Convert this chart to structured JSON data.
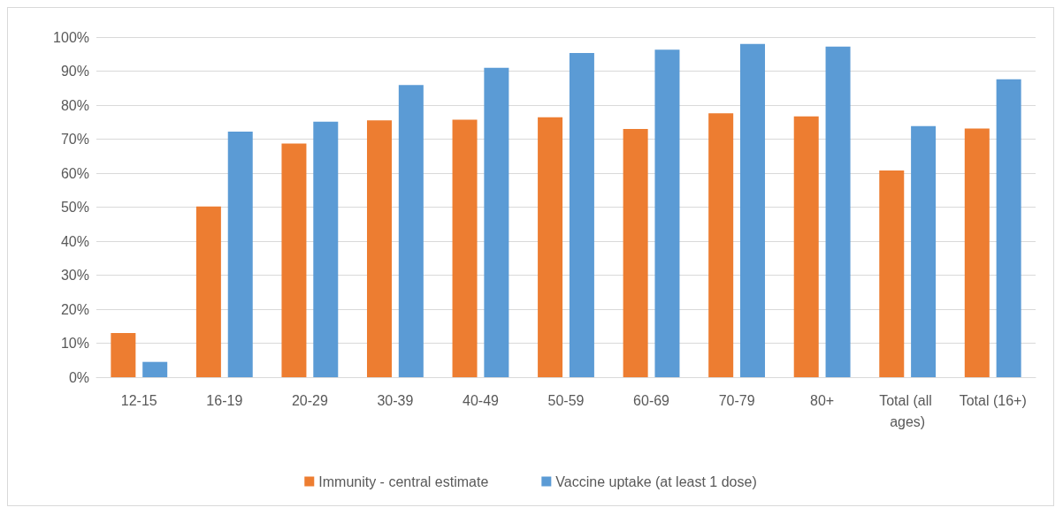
{
  "chart_data": {
    "type": "bar",
    "categories": [
      "12-15",
      "16-19",
      "20-29",
      "30-39",
      "40-49",
      "50-59",
      "60-69",
      "70-79",
      "80+",
      "Total (all ages)",
      "Total (16+)"
    ],
    "series": [
      {
        "name": "Immunity - central estimate",
        "color": "#ed7d31",
        "values": [
          13,
          50.2,
          68.7,
          75.5,
          75.7,
          76.4,
          73,
          77.6,
          76.7,
          60.8,
          73.1
        ]
      },
      {
        "name": "Vaccine uptake (at least 1 dose)",
        "color": "#5b9bd5",
        "values": [
          4.5,
          72.2,
          75.1,
          85.9,
          91,
          95.3,
          96.3,
          98,
          97.2,
          73.8,
          87.6
        ]
      }
    ],
    "ylim": [
      0,
      100
    ],
    "yticks": [
      {
        "value": 0,
        "label": "0%"
      },
      {
        "value": 10,
        "label": "10%"
      },
      {
        "value": 20,
        "label": "20%"
      },
      {
        "value": 30,
        "label": "30%"
      },
      {
        "value": 40,
        "label": "40%"
      },
      {
        "value": 50,
        "label": "50%"
      },
      {
        "value": 60,
        "label": "60%"
      },
      {
        "value": 70,
        "label": "70%"
      },
      {
        "value": 80,
        "label": "80%"
      },
      {
        "value": 90,
        "label": "90%"
      },
      {
        "value": 100,
        "label": "100%"
      }
    ],
    "grid": "y",
    "legend": "bottom"
  }
}
